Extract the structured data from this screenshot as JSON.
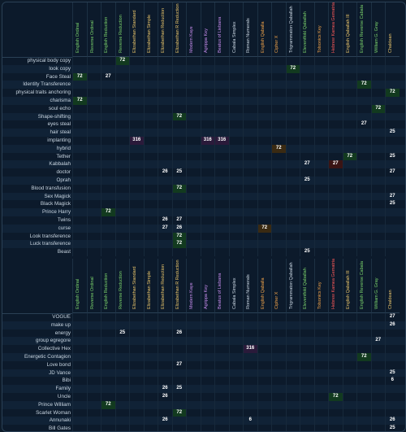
{
  "columns": [
    {
      "label": "English Ordinal",
      "color": "#7bd36b"
    },
    {
      "label": "Reverse Ordinal",
      "color": "#7bd36b"
    },
    {
      "label": "English Reduction",
      "color": "#7bd36b"
    },
    {
      "label": "Reverse Reduction",
      "color": "#7bd36b"
    },
    {
      "label": "Elizabethan Standard",
      "color": "#e8c46a"
    },
    {
      "label": "Elizabethan Simple",
      "color": "#e8c46a"
    },
    {
      "label": "Elizabethan Reduction",
      "color": "#e8c46a"
    },
    {
      "label": "Elizabethan R Reduction",
      "color": "#e8c46a"
    },
    {
      "label": "Modern Kaye",
      "color": "#c98ef0"
    },
    {
      "label": "Agrippa Key",
      "color": "#c98ef0"
    },
    {
      "label": "Beatus of Liebana",
      "color": "#c98ef0"
    },
    {
      "label": "Cabala Simplex",
      "color": "#c9d6e2"
    },
    {
      "label": "Roman Numerals",
      "color": "#c9d6e2"
    },
    {
      "label": "English Qaballa",
      "color": "#f0a34a"
    },
    {
      "label": "Cipher X",
      "color": "#f0a34a"
    },
    {
      "label": "Trigrammaton Qaballah",
      "color": "#c9d6e2"
    },
    {
      "label": "Eleventfold Qaballah",
      "color": "#7bd36b"
    },
    {
      "label": "Tolsonics Key",
      "color": "#f0a34a"
    },
    {
      "label": "Hebrew Kamea Gematria",
      "color": "#ff5a5a"
    },
    {
      "label": "English Qaballah III",
      "color": "#e8c46a"
    },
    {
      "label": "English Reverse Cabala",
      "color": "#7bd36b"
    },
    {
      "label": "William G. Gray",
      "color": "#7bd36b"
    },
    {
      "label": "Chaldean",
      "color": "#e8c46a"
    }
  ],
  "section1": [
    {
      "name": "physical body copy",
      "hits": [
        [
          3,
          "72"
        ]
      ]
    },
    {
      "name": "look copy",
      "hits": [
        [
          15,
          "72"
        ]
      ]
    },
    {
      "name": "Face Steal",
      "hits": [
        [
          0,
          "72"
        ],
        [
          2,
          "27"
        ]
      ]
    },
    {
      "name": "Identity Transference",
      "hits": [
        [
          20,
          "72"
        ]
      ]
    },
    {
      "name": "physical traits anchoring",
      "hits": [
        [
          22,
          "72"
        ]
      ]
    },
    {
      "name": "charisma",
      "hits": [
        [
          0,
          "72"
        ]
      ]
    },
    {
      "name": "soul echo",
      "hits": [
        [
          21,
          "72"
        ]
      ]
    },
    {
      "name": "Shape-shifting",
      "hits": [
        [
          7,
          "72"
        ]
      ]
    },
    {
      "name": "eyes steal",
      "hits": [
        [
          20,
          "27"
        ]
      ]
    },
    {
      "name": "hair steal",
      "hits": [
        [
          22,
          "25"
        ]
      ]
    },
    {
      "name": "implanting",
      "hits": [
        [
          4,
          "316"
        ],
        [
          9,
          "316"
        ],
        [
          10,
          "316"
        ]
      ]
    },
    {
      "name": "hybrid",
      "hits": [
        [
          14,
          "72"
        ]
      ]
    },
    {
      "name": "Tether",
      "hits": [
        [
          19,
          "72"
        ],
        [
          22,
          "25"
        ]
      ]
    },
    {
      "name": "Kabbalah",
      "hits": [
        [
          16,
          "27"
        ],
        [
          18,
          "27"
        ]
      ]
    },
    {
      "name": "doctor",
      "hits": [
        [
          6,
          "26"
        ],
        [
          7,
          "25"
        ],
        [
          22,
          "27"
        ]
      ]
    },
    {
      "name": "Oprah",
      "hits": [
        [
          16,
          "25"
        ]
      ]
    },
    {
      "name": "Blood transfusion",
      "hits": [
        [
          7,
          "72"
        ]
      ]
    },
    {
      "name": "Sex Magick",
      "hits": [
        [
          22,
          "27"
        ]
      ]
    },
    {
      "name": "Black Magick",
      "hits": [
        [
          22,
          "25"
        ]
      ]
    },
    {
      "name": "Prince Harry",
      "hits": [
        [
          2,
          "72"
        ]
      ]
    },
    {
      "name": "Twins",
      "hits": [
        [
          6,
          "26"
        ],
        [
          7,
          "27"
        ]
      ]
    },
    {
      "name": "curse",
      "hits": [
        [
          6,
          "27"
        ],
        [
          7,
          "26"
        ],
        [
          13,
          "72"
        ]
      ]
    },
    {
      "name": "Look transference",
      "hits": [
        [
          7,
          "72"
        ]
      ]
    },
    {
      "name": "Luck transference",
      "hits": [
        [
          7,
          "72"
        ]
      ]
    },
    {
      "name": "Beast",
      "hits": [
        [
          16,
          "25"
        ]
      ]
    }
  ],
  "section2": [
    {
      "name": "VOGUE",
      "hits": [
        [
          22,
          "27"
        ]
      ]
    },
    {
      "name": "make up",
      "hits": [
        [
          22,
          "26"
        ]
      ]
    },
    {
      "name": "energy",
      "hits": [
        [
          3,
          "25"
        ],
        [
          7,
          "26"
        ]
      ]
    },
    {
      "name": "group egregore",
      "hits": [
        [
          21,
          "27"
        ]
      ]
    },
    {
      "name": "Collective Hex",
      "hits": [
        [
          12,
          "316"
        ]
      ]
    },
    {
      "name": "Energetic Contagion",
      "hits": [
        [
          20,
          "72"
        ]
      ]
    },
    {
      "name": "Love bond",
      "hits": [
        [
          7,
          "27"
        ]
      ]
    },
    {
      "name": "JD Vance",
      "hits": [
        [
          22,
          "25"
        ]
      ]
    },
    {
      "name": "Bibi",
      "hits": [
        [
          22,
          "6"
        ]
      ]
    },
    {
      "name": "Family",
      "hits": [
        [
          6,
          "26"
        ],
        [
          7,
          "25"
        ]
      ]
    },
    {
      "name": "Uncle",
      "hits": [
        [
          6,
          "26"
        ],
        [
          18,
          "72"
        ]
      ]
    },
    {
      "name": "Prince William",
      "hits": [
        [
          2,
          "72"
        ]
      ]
    },
    {
      "name": "Scarlet Woman",
      "hits": [
        [
          7,
          "72"
        ]
      ]
    },
    {
      "name": "Annunaki",
      "hits": [
        [
          6,
          "26"
        ],
        [
          12,
          "6"
        ],
        [
          22,
          "26"
        ]
      ]
    },
    {
      "name": "Bill Gates",
      "hits": [
        [
          22,
          "25"
        ]
      ]
    }
  ],
  "colors": {
    "hit_green": "#123a1f",
    "hit_orange": "#3a2a12",
    "hit_red": "#3a1414",
    "hit_purple": "#2a1a3a"
  }
}
